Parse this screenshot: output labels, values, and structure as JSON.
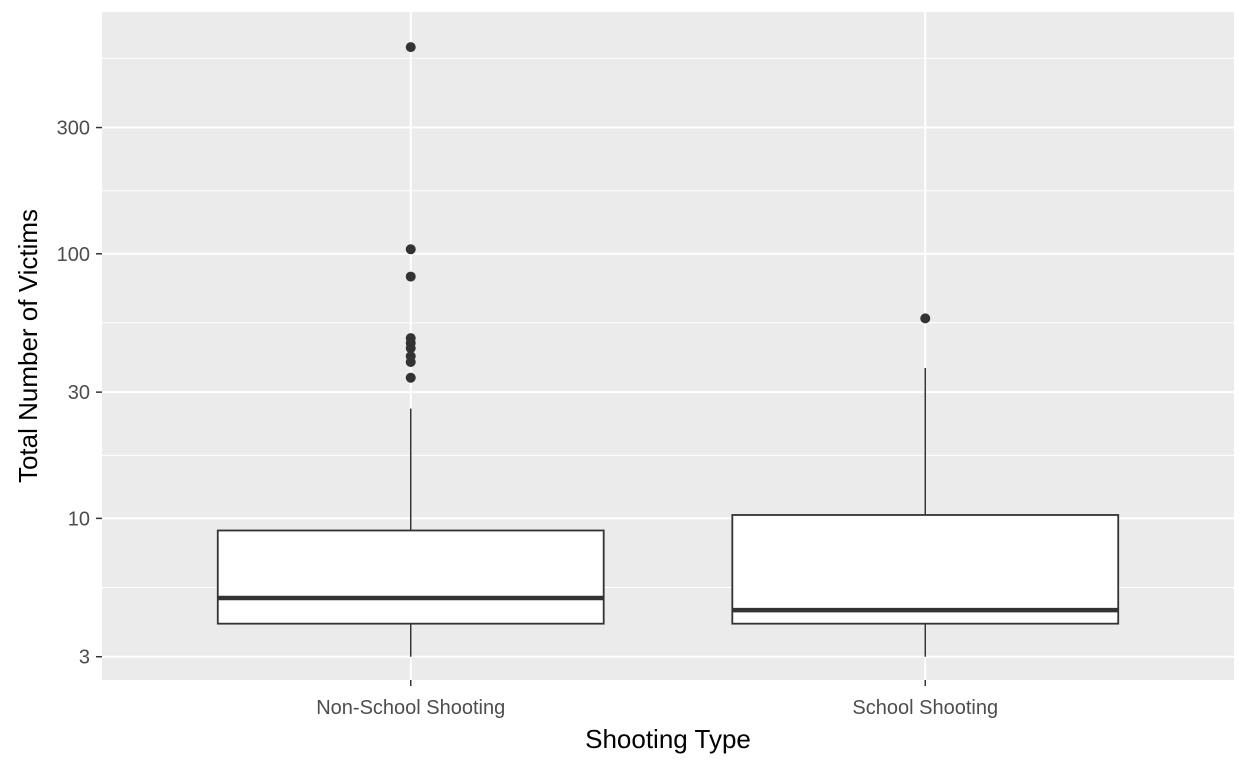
{
  "chart_data": {
    "type": "boxplot",
    "title": "",
    "xlabel": "Shooting Type",
    "ylabel": "Total Number of Victims",
    "y_scale": "log10",
    "ylim": [
      2.45,
      820
    ],
    "y_ticks": [
      3,
      10,
      30,
      100,
      300
    ],
    "y_minor_ticks": [
      5.48,
      17.3,
      54.8,
      173,
      548
    ],
    "categories": [
      "Non-School Shooting",
      "School Shooting"
    ],
    "boxes": [
      {
        "category": "Non-School Shooting",
        "whisker_low": 3,
        "q1": 4,
        "median": 5,
        "q3": 9,
        "whisker_high": 26,
        "outliers": [
          604,
          104,
          82,
          48,
          46,
          44,
          41,
          39,
          34
        ]
      },
      {
        "category": "School Shooting",
        "whisker_low": 3,
        "q1": 4,
        "median": 4.5,
        "q3": 10.3,
        "whisker_high": 37,
        "outliers": [
          57
        ]
      }
    ],
    "colors": {
      "panel_background": "#ebebeb",
      "grid": "#ffffff",
      "box_fill": "#ffffff",
      "box_line": "#333333",
      "point": "#333333"
    },
    "grid": true,
    "legend": "none"
  }
}
